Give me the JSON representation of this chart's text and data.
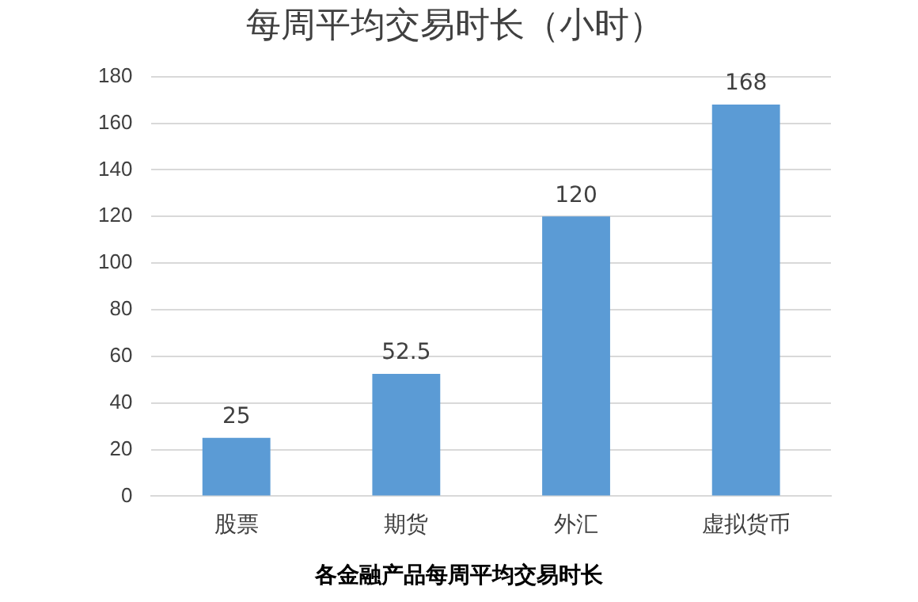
{
  "chart_data": {
    "type": "bar",
    "title": "每周平均交易时长（小时）",
    "categories": [
      "股票",
      "期货",
      "外汇",
      "虚拟货币"
    ],
    "values": [
      25,
      52.5,
      120,
      168
    ],
    "color": "#5b9bd5",
    "ylim": [
      0,
      180
    ],
    "yticks": [
      0,
      20,
      40,
      60,
      80,
      100,
      120,
      140,
      160,
      180
    ],
    "grid": "y",
    "data_labels": true,
    "annotations": [
      "各金融产品每周平均交易时长"
    ]
  }
}
